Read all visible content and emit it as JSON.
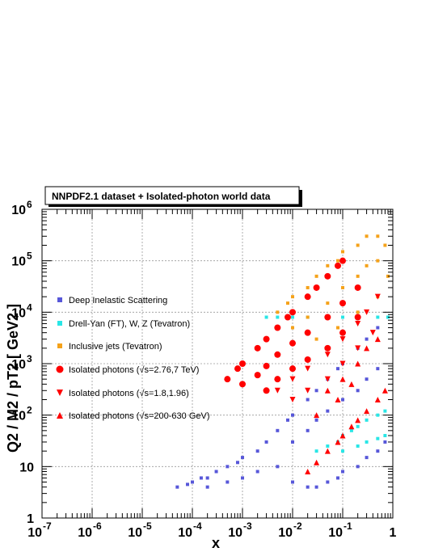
{
  "chart_data": {
    "type": "scatter",
    "title": "NNPDF2.1 dataset + Isolated-photon world data",
    "xlabel": "x",
    "ylabel": "Q2 / M2 / pT2 [ GeV2 ]",
    "xscale": "log",
    "yscale": "log",
    "xlim": [
      1e-07,
      1
    ],
    "ylim": [
      1,
      1000000
    ],
    "grid": true,
    "legend_position": "left",
    "x_ticks": [
      {
        "base": "10",
        "exp": "-7"
      },
      {
        "base": "10",
        "exp": "-6"
      },
      {
        "base": "10",
        "exp": "-5"
      },
      {
        "base": "10",
        "exp": "-4"
      },
      {
        "base": "10",
        "exp": "-3"
      },
      {
        "base": "10",
        "exp": "-2"
      },
      {
        "base": "10",
        "exp": "-1"
      },
      {
        "base": "1",
        "exp": ""
      }
    ],
    "y_ticks": [
      {
        "base": "1",
        "exp": ""
      },
      {
        "base": "10",
        "exp": ""
      },
      {
        "base": "10",
        "exp": "2"
      },
      {
        "base": "10",
        "exp": "3"
      },
      {
        "base": "10",
        "exp": "4"
      },
      {
        "base": "10",
        "exp": "5"
      },
      {
        "base": "10",
        "exp": "6"
      }
    ],
    "series": [
      {
        "name": "Deep Inelastic Scattering",
        "color": "#5757d9",
        "marker": "square",
        "points": [
          [
            5e-05,
            4
          ],
          [
            8e-05,
            4.5
          ],
          [
            0.0001,
            5
          ],
          [
            0.00015,
            6
          ],
          [
            0.0002,
            6
          ],
          [
            0.0003,
            8
          ],
          [
            0.0005,
            10
          ],
          [
            0.0008,
            12
          ],
          [
            0.001,
            15
          ],
          [
            0.002,
            20
          ],
          [
            0.003,
            30
          ],
          [
            0.005,
            50
          ],
          [
            0.008,
            80
          ],
          [
            0.01,
            100
          ],
          [
            0.02,
            200
          ],
          [
            0.03,
            300
          ],
          [
            0.05,
            500
          ],
          [
            0.08,
            800
          ],
          [
            0.1,
            1000
          ],
          [
            0.2,
            2000
          ],
          [
            0.3,
            3000
          ],
          [
            0.5,
            5000
          ],
          [
            0.0002,
            4
          ],
          [
            0.0005,
            5
          ],
          [
            0.001,
            6
          ],
          [
            0.002,
            8
          ],
          [
            0.005,
            10
          ],
          [
            0.01,
            5
          ],
          [
            0.02,
            4
          ],
          [
            0.03,
            4
          ],
          [
            0.05,
            5
          ],
          [
            0.08,
            6
          ],
          [
            0.1,
            8
          ],
          [
            0.2,
            10
          ],
          [
            0.3,
            15
          ],
          [
            0.5,
            20
          ],
          [
            0.7,
            30
          ],
          [
            0.01,
            30
          ],
          [
            0.02,
            50
          ],
          [
            0.03,
            80
          ],
          [
            0.05,
            120
          ],
          [
            0.1,
            200
          ],
          [
            0.2,
            300
          ],
          [
            0.3,
            500
          ],
          [
            0.5,
            800
          ]
        ]
      },
      {
        "name": "Drell-Yan (FT), W, Z (Tevatron)",
        "color": "#29e6e6",
        "marker": "square",
        "points": [
          [
            0.03,
            20
          ],
          [
            0.05,
            25
          ],
          [
            0.08,
            30
          ],
          [
            0.1,
            40
          ],
          [
            0.15,
            50
          ],
          [
            0.2,
            60
          ],
          [
            0.3,
            80
          ],
          [
            0.5,
            100
          ],
          [
            0.7,
            120
          ],
          [
            0.1,
            20
          ],
          [
            0.2,
            25
          ],
          [
            0.3,
            30
          ],
          [
            0.5,
            35
          ],
          [
            0.7,
            40
          ],
          [
            0.003,
            8000
          ],
          [
            0.005,
            8000
          ],
          [
            0.01,
            8000
          ],
          [
            0.02,
            8000
          ],
          [
            0.05,
            8000
          ],
          [
            0.1,
            8000
          ],
          [
            0.2,
            8000
          ],
          [
            0.5,
            8000
          ],
          [
            0.8,
            8000
          ]
        ]
      },
      {
        "name": "Inclusive jets (Tevatron)",
        "color": "#f5a21a",
        "marker": "square",
        "points": [
          [
            0.005,
            10000
          ],
          [
            0.008,
            15000
          ],
          [
            0.01,
            20000
          ],
          [
            0.02,
            30000
          ],
          [
            0.03,
            50000
          ],
          [
            0.05,
            80000
          ],
          [
            0.08,
            100000
          ],
          [
            0.1,
            150000
          ],
          [
            0.2,
            200000
          ],
          [
            0.3,
            300000
          ],
          [
            0.5,
            300000
          ],
          [
            0.7,
            200000
          ],
          [
            0.01,
            5000
          ],
          [
            0.02,
            8000
          ],
          [
            0.05,
            15000
          ],
          [
            0.1,
            30000
          ],
          [
            0.2,
            50000
          ],
          [
            0.3,
            80000
          ],
          [
            0.5,
            100000
          ],
          [
            0.03,
            3000
          ],
          [
            0.08,
            5000
          ],
          [
            0.2,
            10000
          ],
          [
            0.5,
            20000
          ],
          [
            0.8,
            50000
          ]
        ]
      },
      {
        "name": "Isolated photons (√s=2.76,7 TeV)",
        "color": "#ff0000",
        "marker": "circle",
        "points": [
          [
            0.0005,
            500
          ],
          [
            0.0008,
            800
          ],
          [
            0.001,
            1000
          ],
          [
            0.002,
            2000
          ],
          [
            0.003,
            3000
          ],
          [
            0.005,
            5000
          ],
          [
            0.008,
            8000
          ],
          [
            0.01,
            10000
          ],
          [
            0.02,
            20000
          ],
          [
            0.03,
            30000
          ],
          [
            0.05,
            50000
          ],
          [
            0.08,
            80000
          ],
          [
            0.1,
            100000
          ],
          [
            0.001,
            400
          ],
          [
            0.002,
            600
          ],
          [
            0.003,
            900
          ],
          [
            0.005,
            1500
          ],
          [
            0.01,
            2500
          ],
          [
            0.02,
            4000
          ],
          [
            0.05,
            8000
          ],
          [
            0.1,
            15000
          ],
          [
            0.2,
            30000
          ],
          [
            0.003,
            300
          ],
          [
            0.005,
            500
          ],
          [
            0.01,
            800
          ],
          [
            0.02,
            1200
          ],
          [
            0.05,
            2000
          ],
          [
            0.1,
            4000
          ],
          [
            0.2,
            8000
          ]
        ]
      },
      {
        "name": "Isolated photons (√s=1.8,1.96)",
        "color": "#ff0000",
        "marker": "triangle-down",
        "points": [
          [
            0.005,
            300
          ],
          [
            0.01,
            500
          ],
          [
            0.02,
            800
          ],
          [
            0.05,
            1500
          ],
          [
            0.1,
            3000
          ],
          [
            0.2,
            6000
          ],
          [
            0.3,
            10000
          ],
          [
            0.5,
            20000
          ],
          [
            0.01,
            200
          ],
          [
            0.02,
            300
          ],
          [
            0.05,
            500
          ],
          [
            0.1,
            1000
          ],
          [
            0.2,
            2000
          ],
          [
            0.4,
            4000
          ]
        ]
      },
      {
        "name": "Isolated photons (√s=200-630 GeV)",
        "color": "#ff0000",
        "marker": "triangle-up",
        "points": [
          [
            0.02,
            8
          ],
          [
            0.03,
            12
          ],
          [
            0.05,
            20
          ],
          [
            0.08,
            30
          ],
          [
            0.1,
            40
          ],
          [
            0.15,
            60
          ],
          [
            0.2,
            80
          ],
          [
            0.3,
            120
          ],
          [
            0.5,
            200
          ],
          [
            0.7,
            300
          ],
          [
            0.05,
            300
          ],
          [
            0.1,
            500
          ],
          [
            0.2,
            1000
          ],
          [
            0.3,
            2000
          ],
          [
            0.5,
            3000
          ],
          [
            0.03,
            100
          ],
          [
            0.08,
            200
          ],
          [
            0.15,
            400
          ]
        ]
      }
    ]
  }
}
